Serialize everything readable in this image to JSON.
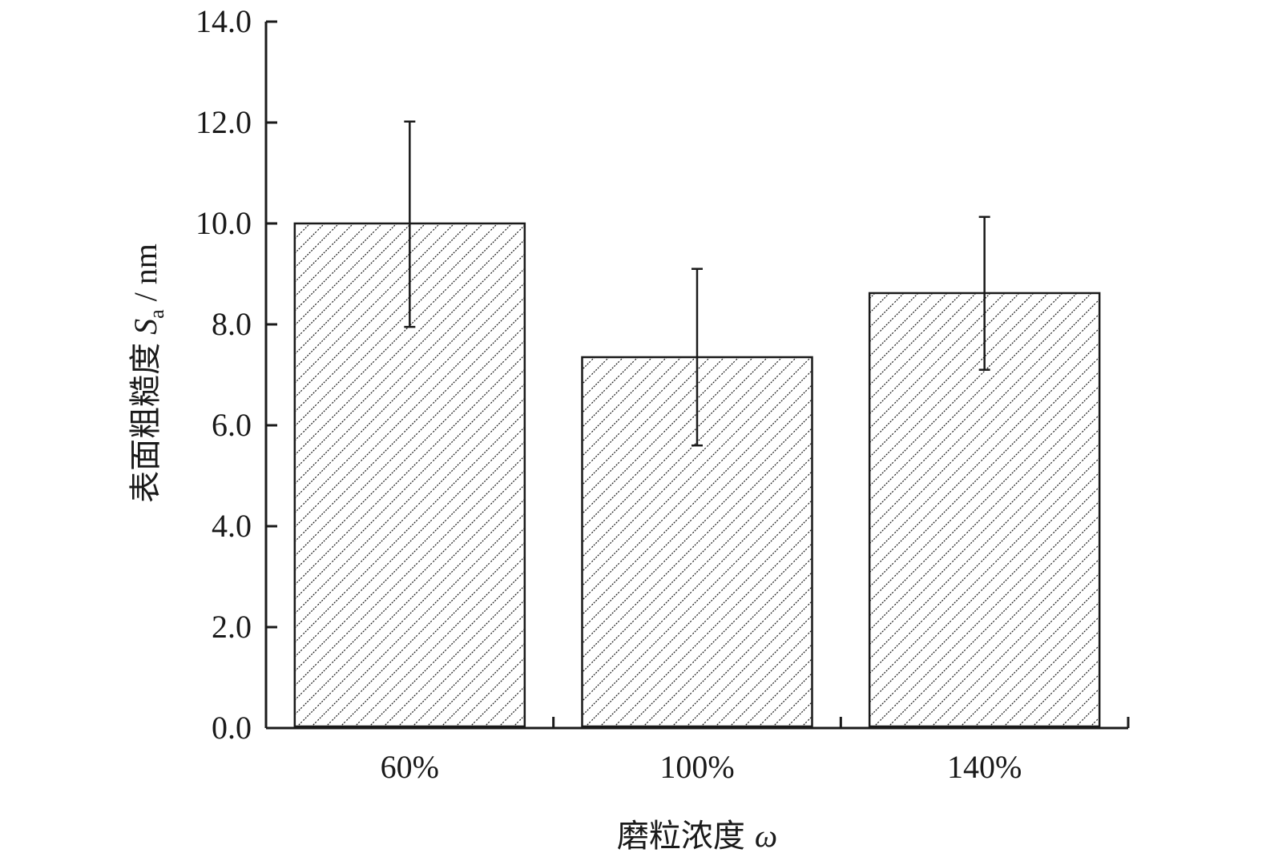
{
  "chart_data": {
    "type": "bar",
    "categories": [
      "60%",
      "100%",
      "140%"
    ],
    "values": [
      10.0,
      7.35,
      8.62
    ],
    "error_upper": [
      12.02,
      9.1,
      10.13
    ],
    "error_lower": [
      7.95,
      5.6,
      7.1
    ],
    "title": "",
    "xlabel": {
      "text": "磨粒浓度",
      "symbol": "ω"
    },
    "ylabel": {
      "text": "表面粗糙度",
      "symbol": "S",
      "subscript": "a",
      "unit": "/ nm"
    },
    "ylim": [
      0,
      14
    ],
    "yticks": [
      "0.0",
      "2.0",
      "4.0",
      "6.0",
      "8.0",
      "10.0",
      "12.0",
      "14.0"
    ],
    "grid": false,
    "legend": "none",
    "bar_fill": "hatched diagonal",
    "colors": {
      "ink": "#1a1a1a",
      "background": "#ffffff"
    }
  }
}
